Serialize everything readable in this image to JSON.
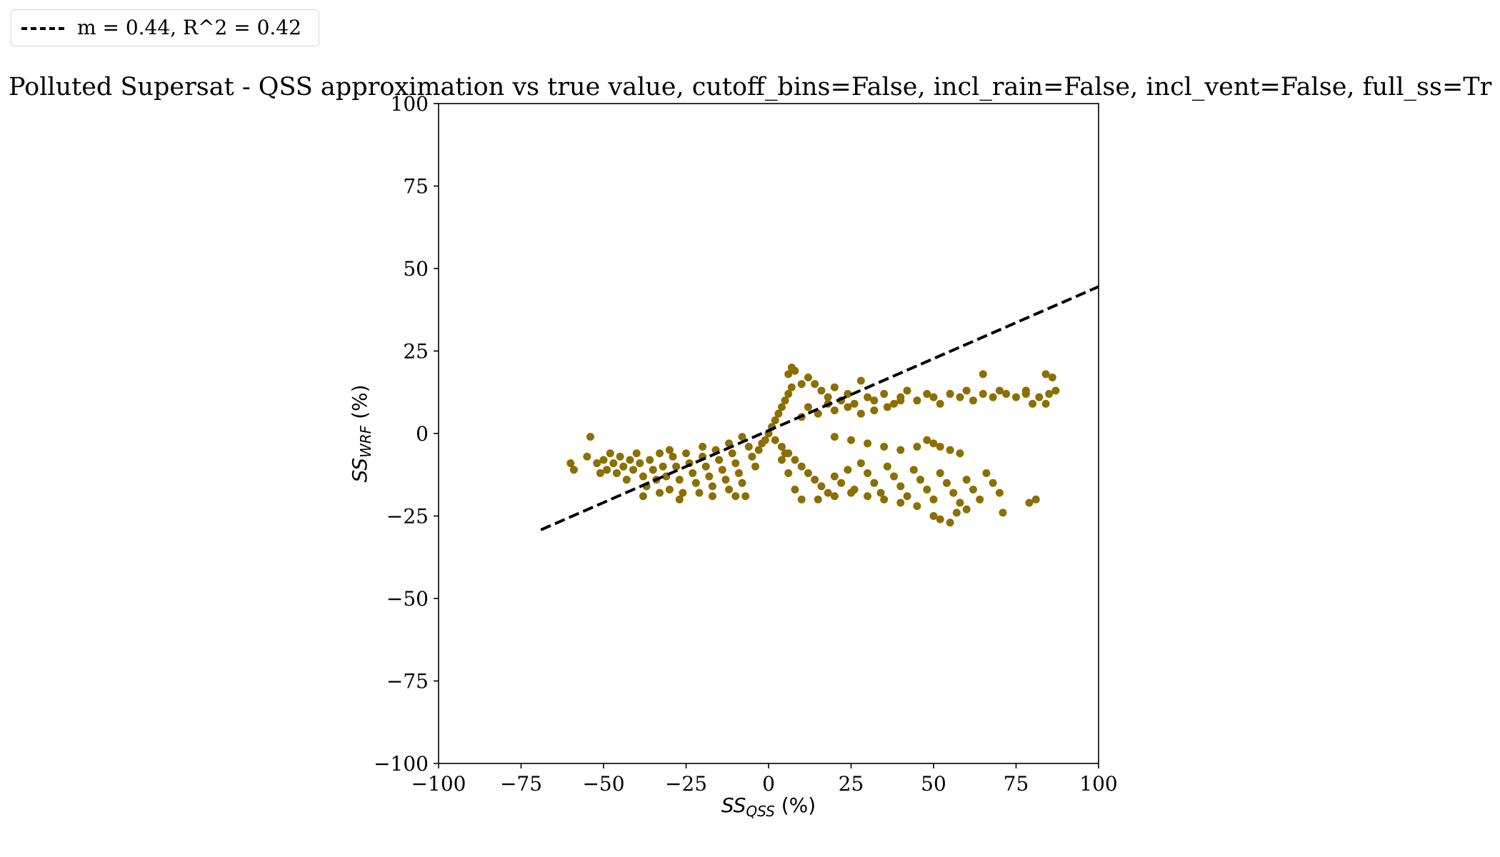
{
  "chart_data": {
    "type": "scatter",
    "title": "Polluted Supersat - QSS approximation vs true value, cutoff_bins=False, incl_rain=False, incl_vent=False, full_ss=Tr",
    "xlabel": {
      "base": "SS",
      "sub": "QSS",
      "unit": " (%)"
    },
    "ylabel": {
      "base": "SS",
      "sub": "WRF",
      "unit": " (%)"
    },
    "xlim": [
      -100,
      100
    ],
    "ylim": [
      -100,
      100
    ],
    "xticks": [
      -100,
      -75,
      -50,
      -25,
      0,
      25,
      50,
      75,
      100
    ],
    "yticks": [
      -100,
      -75,
      -50,
      -25,
      0,
      25,
      50,
      75,
      100
    ],
    "xtick_labels": [
      "−100",
      "−75",
      "−50",
      "−25",
      "0",
      "25",
      "50",
      "75",
      "100"
    ],
    "ytick_labels": [
      "−100",
      "−75",
      "−50",
      "−25",
      "0",
      "25",
      "50",
      "75",
      "100"
    ],
    "grid": false,
    "legend_position": "top-left, outside",
    "point_color": "#8B6F00",
    "series": [
      {
        "kind": "points",
        "color": "#8B6F00",
        "points": [
          [
            -60,
            -9
          ],
          [
            -59,
            -11
          ],
          [
            -55,
            -7
          ],
          [
            -54,
            -1
          ],
          [
            -52,
            -9
          ],
          [
            -51,
            -12
          ],
          [
            -50,
            -8
          ],
          [
            -49,
            -11
          ],
          [
            -48,
            -6
          ],
          [
            -47,
            -9
          ],
          [
            -46,
            -12
          ],
          [
            -45,
            -7
          ],
          [
            -44,
            -10
          ],
          [
            -43,
            -14
          ],
          [
            -42,
            -8
          ],
          [
            -41,
            -11
          ],
          [
            -40,
            -6
          ],
          [
            -39,
            -9
          ],
          [
            -38,
            -13
          ],
          [
            -37,
            -16
          ],
          [
            -36,
            -8
          ],
          [
            -35,
            -11
          ],
          [
            -34,
            -14
          ],
          [
            -33,
            -6
          ],
          [
            -32,
            -10
          ],
          [
            -31,
            -13
          ],
          [
            -30,
            -17
          ],
          [
            -29,
            -7
          ],
          [
            -28,
            -10
          ],
          [
            -27,
            -14
          ],
          [
            -26,
            -18
          ],
          [
            -25,
            -6
          ],
          [
            -24,
            -9
          ],
          [
            -23,
            -12
          ],
          [
            -22,
            -15
          ],
          [
            -21,
            -18
          ],
          [
            -20,
            -7
          ],
          [
            -19,
            -10
          ],
          [
            -18,
            -13
          ],
          [
            -17,
            -16
          ],
          [
            -16,
            -5
          ],
          [
            -15,
            -8
          ],
          [
            -14,
            -11
          ],
          [
            -13,
            -14
          ],
          [
            -12,
            -17
          ],
          [
            -11,
            -6
          ],
          [
            -10,
            -9
          ],
          [
            -9,
            -12
          ],
          [
            -8,
            -15
          ],
          [
            -7,
            -19
          ],
          [
            -6,
            -4
          ],
          [
            -5,
            -7
          ],
          [
            -4,
            -10
          ],
          [
            -3,
            -5
          ],
          [
            -2,
            -3
          ],
          [
            -1,
            -2
          ],
          [
            -8,
            -1
          ],
          [
            -12,
            -3
          ],
          [
            -20,
            -4
          ],
          [
            -30,
            -5
          ],
          [
            -38,
            -19
          ],
          [
            -33,
            -18
          ],
          [
            -27,
            -20
          ],
          [
            -17,
            -19
          ],
          [
            -10,
            -19
          ],
          [
            0,
            0
          ],
          [
            1,
            2
          ],
          [
            2,
            4
          ],
          [
            3,
            6
          ],
          [
            4,
            8
          ],
          [
            5,
            10
          ],
          [
            6,
            12
          ],
          [
            7,
            14
          ],
          [
            6,
            18
          ],
          [
            7,
            20
          ],
          [
            8,
            19
          ],
          [
            10,
            15
          ],
          [
            12,
            17
          ],
          [
            14,
            15
          ],
          [
            16,
            13
          ],
          [
            18,
            11
          ],
          [
            20,
            14
          ],
          [
            22,
            10
          ],
          [
            24,
            12
          ],
          [
            26,
            9
          ],
          [
            28,
            16
          ],
          [
            30,
            11
          ],
          [
            32,
            10
          ],
          [
            35,
            12
          ],
          [
            38,
            9
          ],
          [
            40,
            11
          ],
          [
            42,
            13
          ],
          [
            45,
            10
          ],
          [
            48,
            12
          ],
          [
            50,
            11
          ],
          [
            52,
            9
          ],
          [
            55,
            12
          ],
          [
            58,
            11
          ],
          [
            60,
            13
          ],
          [
            62,
            10
          ],
          [
            65,
            12
          ],
          [
            68,
            11
          ],
          [
            70,
            13
          ],
          [
            72,
            12
          ],
          [
            75,
            11
          ],
          [
            78,
            12
          ],
          [
            80,
            9
          ],
          [
            82,
            11
          ],
          [
            84,
            18
          ],
          [
            85,
            12
          ],
          [
            86,
            17
          ],
          [
            87,
            13
          ],
          [
            84,
            9
          ],
          [
            78,
            13
          ],
          [
            65,
            18
          ],
          [
            10,
            5
          ],
          [
            12,
            8
          ],
          [
            15,
            6
          ],
          [
            18,
            9
          ],
          [
            20,
            7
          ],
          [
            24,
            8
          ],
          [
            28,
            6
          ],
          [
            32,
            7
          ],
          [
            36,
            8
          ],
          [
            40,
            10
          ],
          [
            2,
            -2
          ],
          [
            4,
            -4
          ],
          [
            6,
            -6
          ],
          [
            8,
            -8
          ],
          [
            10,
            -10
          ],
          [
            12,
            -12
          ],
          [
            14,
            -14
          ],
          [
            16,
            -16
          ],
          [
            18,
            -18
          ],
          [
            20,
            -13
          ],
          [
            22,
            -15
          ],
          [
            24,
            -11
          ],
          [
            26,
            -17
          ],
          [
            28,
            -9
          ],
          [
            30,
            -12
          ],
          [
            32,
            -15
          ],
          [
            34,
            -18
          ],
          [
            36,
            -10
          ],
          [
            38,
            -13
          ],
          [
            40,
            -16
          ],
          [
            42,
            -19
          ],
          [
            44,
            -11
          ],
          [
            46,
            -14
          ],
          [
            48,
            -17
          ],
          [
            50,
            -20
          ],
          [
            52,
            -12
          ],
          [
            54,
            -15
          ],
          [
            56,
            -18
          ],
          [
            58,
            -21
          ],
          [
            60,
            -14
          ],
          [
            62,
            -17
          ],
          [
            64,
            -20
          ],
          [
            66,
            -12
          ],
          [
            68,
            -15
          ],
          [
            70,
            -18
          ],
          [
            71,
            -24
          ],
          [
            79,
            -21
          ],
          [
            81,
            -20
          ],
          [
            50,
            -25
          ],
          [
            52,
            -26
          ],
          [
            55,
            -27
          ],
          [
            57,
            -24
          ],
          [
            60,
            -23
          ],
          [
            45,
            -22
          ],
          [
            40,
            -21
          ],
          [
            35,
            -20
          ],
          [
            30,
            -19
          ],
          [
            25,
            -18
          ],
          [
            20,
            -19
          ],
          [
            15,
            -20
          ],
          [
            10,
            -20
          ],
          [
            8,
            -17
          ],
          [
            6,
            -12
          ],
          [
            4,
            -8
          ],
          [
            5,
            -6
          ],
          [
            50,
            -3
          ],
          [
            52,
            -4
          ],
          [
            55,
            -5
          ],
          [
            58,
            -6
          ],
          [
            48,
            -2
          ],
          [
            45,
            -4
          ],
          [
            40,
            -5
          ],
          [
            35,
            -4
          ],
          [
            30,
            -3
          ],
          [
            25,
            -2
          ],
          [
            20,
            -1
          ]
        ]
      },
      {
        "kind": "line",
        "name": "m = 0.44, R^2 = 0.42",
        "style": "dashed",
        "color": "#000000",
        "x": [
          -69,
          100
        ],
        "y": [
          -29.2,
          44.5
        ]
      }
    ]
  },
  "legend": {
    "label": "m = 0.44, R^2 = 0.42"
  }
}
